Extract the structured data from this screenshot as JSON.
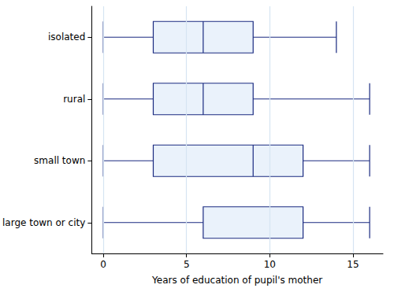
{
  "chart_data": {
    "type": "boxplot",
    "orientation": "horizontal",
    "xlabel": "Years of education of pupil's mother",
    "categories": [
      "isolated",
      "rural",
      "small town",
      "large town or city"
    ],
    "values": [
      [
        0,
        3,
        6,
        9,
        14
      ],
      [
        0,
        3,
        6,
        9,
        16
      ],
      [
        0,
        3,
        9,
        12,
        16
      ],
      [
        0,
        6,
        12,
        12,
        16
      ]
    ],
    "color": "#1a2a80",
    "xlim": [
      -0.7,
      16.8
    ],
    "xticks": [
      0,
      5,
      10,
      15
    ],
    "grid": true
  }
}
